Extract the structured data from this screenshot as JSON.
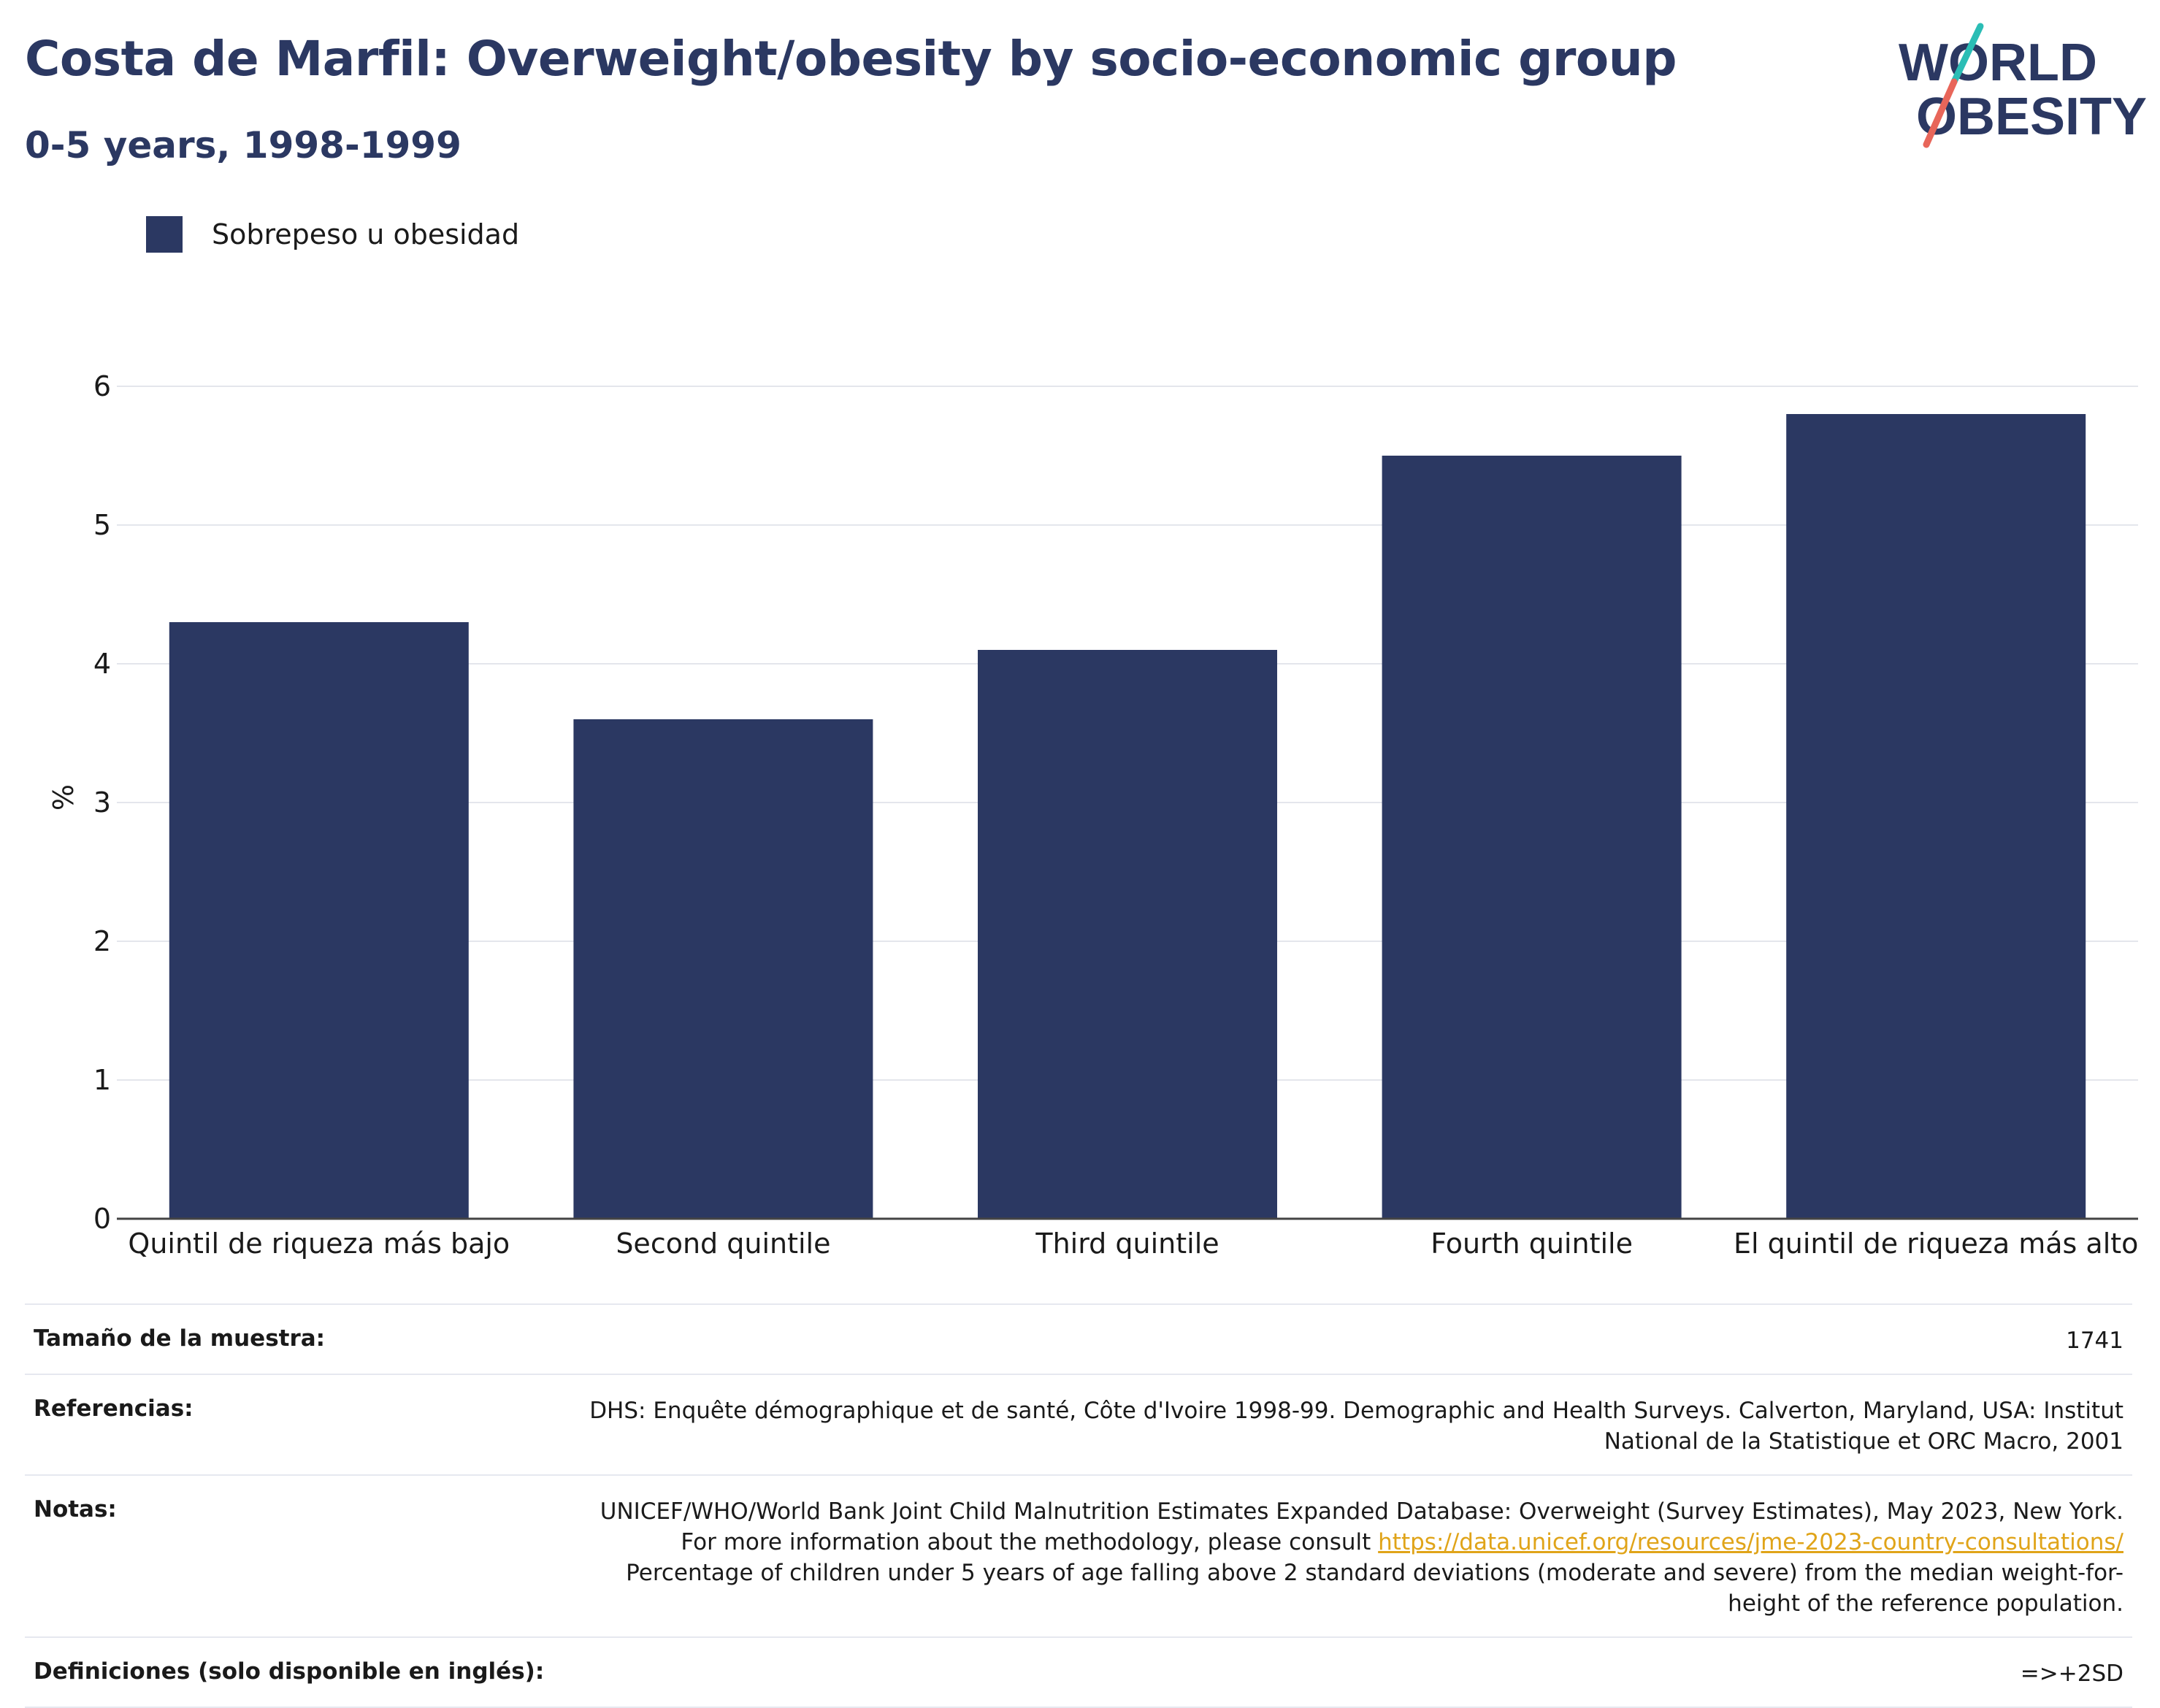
{
  "title": "Costa de Marfil: Overweight/obesity by socio-economic group",
  "subtitle": "0-5 years, 1998-1999",
  "logo": {
    "line1": "WORLD",
    "line2": "OBESITY",
    "colors": {
      "text": "#2b3862",
      "teal": "#2bbdb5",
      "coral": "#e8665a"
    }
  },
  "legend": {
    "label": "Sobrepeso u obesidad",
    "color": "#2b3862"
  },
  "chart_data": {
    "type": "bar",
    "categories": [
      "Quintil de riqueza más bajo",
      "Second quintile",
      "Third quintile",
      "Fourth quintile",
      "El quintil de riqueza más alto"
    ],
    "series": [
      {
        "name": "Sobrepeso u obesidad",
        "values": [
          4.3,
          3.6,
          4.1,
          5.5,
          5.8
        ],
        "color": "#2b3862"
      }
    ],
    "title": "Costa de Marfil: Overweight/obesity by socio-economic group",
    "subtitle": "0-5 years, 1998-1999",
    "xlabel": "",
    "ylabel": "%",
    "ylim": [
      0,
      6
    ],
    "yticks": [
      "0",
      "1",
      "2",
      "3",
      "4",
      "5",
      "6"
    ],
    "grid": true,
    "legend_position": "top-left"
  },
  "meta": {
    "sample_label": "Tamaño de la muestra:",
    "sample_value": "1741",
    "refs_label": "Referencias:",
    "refs_value": "DHS: Enquête démographique et de santé, Côte d'Ivoire 1998-99. Demographic and Health Surveys. Calverton, Maryland, USA: Institut National de la Statistique et ORC Macro, 2001",
    "notes_label": "Notas:",
    "notes_part1": "UNICEF/WHO/World Bank Joint Child Malnutrition Estimates Expanded Database: Overweight (Survey Estimates), May 2023, New York. For more information about the methodology, please consult ",
    "notes_link": "https://data.unicef.org/resources/jme-2023-country-consultations/",
    "notes_part2": " Percentage of children under 5 years of age falling above 2 standard deviations (moderate and severe) from the median weight-for-height of the reference population.",
    "defs_label": "Definiciones (solo disponible en inglés):",
    "defs_value": "=>+2SD"
  }
}
